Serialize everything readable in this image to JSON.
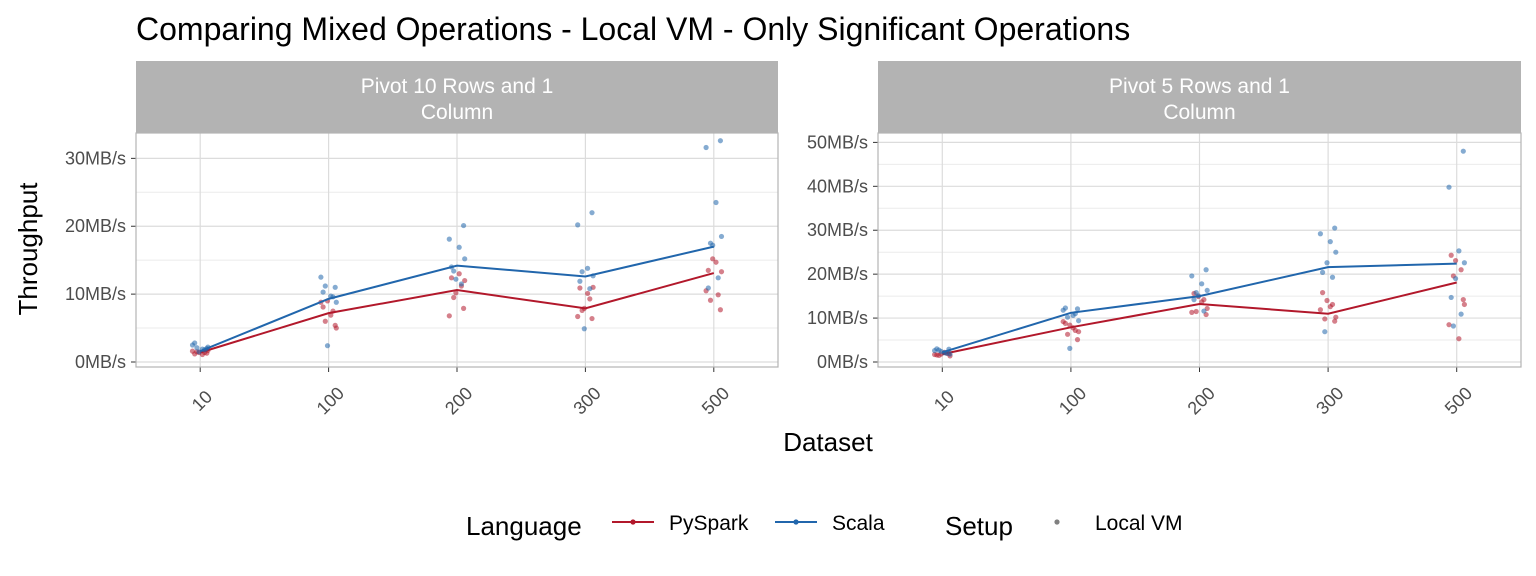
{
  "chart_data": {
    "type": "line",
    "title": "Comparing Mixed Operations - Local VM - Only Significant Operations",
    "xlabel": "Dataset",
    "ylabel": "Throughput",
    "categories": [
      "10",
      "100",
      "200",
      "300",
      "500"
    ],
    "grid": true,
    "legend_position": "bottom",
    "legend": {
      "language_title": "Language",
      "language_items": [
        "PySpark",
        "Scala"
      ],
      "setup_title": "Setup",
      "setup_items": [
        "Local VM"
      ]
    },
    "colors": {
      "PySpark": "#b2182b",
      "Scala": "#2166ac",
      "setup_point": "#808080"
    },
    "panels": [
      {
        "strip": [
          "Pivot 10 Rows and 1",
          "Column"
        ],
        "ylim": [
          0,
          33
        ],
        "yticks": [
          0,
          10,
          20,
          30
        ],
        "ytick_labels": [
          "0MB/s",
          "10MB/s",
          "20MB/s",
          "30MB/s"
        ],
        "series": [
          {
            "name": "PySpark",
            "values": [
              1.4,
              7.2,
              10.6,
              7.9,
              13.1
            ],
            "points": [
              [
                [
                  1.2,
                  1.4,
                  1.5,
                  1.3,
                  1.6,
                  1.1,
                  1.7,
                  1.4
                ]
              ],
              [
                [
                  8.1,
                  7.5,
                  6.0,
                  5.4,
                  8.8,
                  6.9,
                  5.0,
                  9.0
                ]
              ],
              [
                [
                  12.4,
                  11.2,
                  9.5,
                  7.9,
                  6.8,
                  13.0,
                  12.0,
                  10.2
                ]
              ],
              [
                [
                  10.9,
                  9.3,
                  7.6,
                  6.4,
                  6.7,
                  10.1,
                  11.0,
                  7.9
                ]
              ],
              [
                [
                  13.5,
                  9.9,
                  9.1,
                  7.7,
                  10.5,
                  14.7,
                  13.3,
                  15.2
                ]
              ]
            ]
          },
          {
            "name": "Scala",
            "values": [
              1.6,
              9.3,
              14.2,
              12.6,
              17.0
            ],
            "points": [
              [
                [
                  2.0,
                  2.5,
                  1.9,
                  2.2,
                  1.5,
                  2.8,
                  1.8,
                  2.1
                ]
              ],
              [
                [
                  11.0,
                  12.5,
                  9.7,
                  8.8,
                  2.4,
                  10.3,
                  9.6,
                  11.2
                ]
              ],
              [
                [
                  20.1,
                  18.1,
                  16.9,
                  15.2,
                  12.2,
                  14.0,
                  11.5,
                  13.4
                ]
              ],
              [
                [
                  22.0,
                  20.2,
                  13.8,
                  12.7,
                  4.9,
                  11.9,
                  10.8,
                  13.3
                ]
              ],
              [
                [
                  32.6,
                  31.6,
                  23.5,
                  18.5,
                  17.2,
                  10.9,
                  12.4,
                  17.5
                ]
              ]
            ]
          }
        ]
      },
      {
        "strip": [
          "Pivot 5 Rows and 1",
          "Column"
        ],
        "ylim": [
          0,
          51
        ],
        "yticks": [
          0,
          10,
          20,
          30,
          40,
          50
        ],
        "ytick_labels": [
          "0MB/s",
          "10MB/s",
          "20MB/s",
          "30MB/s",
          "40MB/s",
          "50MB/s"
        ],
        "series": [
          {
            "name": "PySpark",
            "values": [
              1.8,
              7.9,
              13.2,
              11.0,
              18.1
            ],
            "points": [
              [
                [
                  1.6,
                  2.0,
                  1.5,
                  1.9,
                  1.7,
                  2.2,
                  1.4,
                  1.8
                ]
              ],
              [
                [
                  8.8,
                  7.2,
                  6.3,
                  5.1,
                  9.2,
                  7.8,
                  6.9,
                  8.4
                ]
              ],
              [
                [
                  15.6,
                  14.2,
                  11.5,
                  10.8,
                  11.3,
                  13.7,
                  12.2,
                  14.9
                ]
              ],
              [
                [
                  15.8,
                  13.1,
                  9.8,
                  9.3,
                  11.9,
                  12.6,
                  10.2,
                  14.0
                ]
              ],
              [
                [
                  24.3,
                  21.0,
                  19.6,
                  14.2,
                  8.5,
                  5.3,
                  13.1,
                  23.1
                ]
              ]
            ]
          },
          {
            "name": "Scala",
            "values": [
              2.2,
              11.2,
              15.0,
              21.6,
              22.4
            ],
            "points": [
              [
                [
                  2.9,
                  2.6,
                  2.1,
                  1.8,
                  2.4,
                  3.0,
                  2.0,
                  2.7
                ]
              ],
              [
                [
                  12.1,
                  11.8,
                  10.6,
                  9.4,
                  3.1,
                  12.3,
                  11.0,
                  10.2
                ]
              ],
              [
                [
                  21.0,
                  19.6,
                  17.8,
                  16.3,
                  15.1,
                  14.2,
                  11.6,
                  15.8
                ]
              ],
              [
                [
                  30.5,
                  29.2,
                  27.4,
                  25.0,
                  22.6,
                  20.4,
                  19.3,
                  6.9
                ]
              ],
              [
                [
                  48.0,
                  39.8,
                  25.3,
                  22.6,
                  19.0,
                  14.7,
                  10.9,
                  8.2
                ]
              ]
            ]
          }
        ]
      }
    ]
  }
}
